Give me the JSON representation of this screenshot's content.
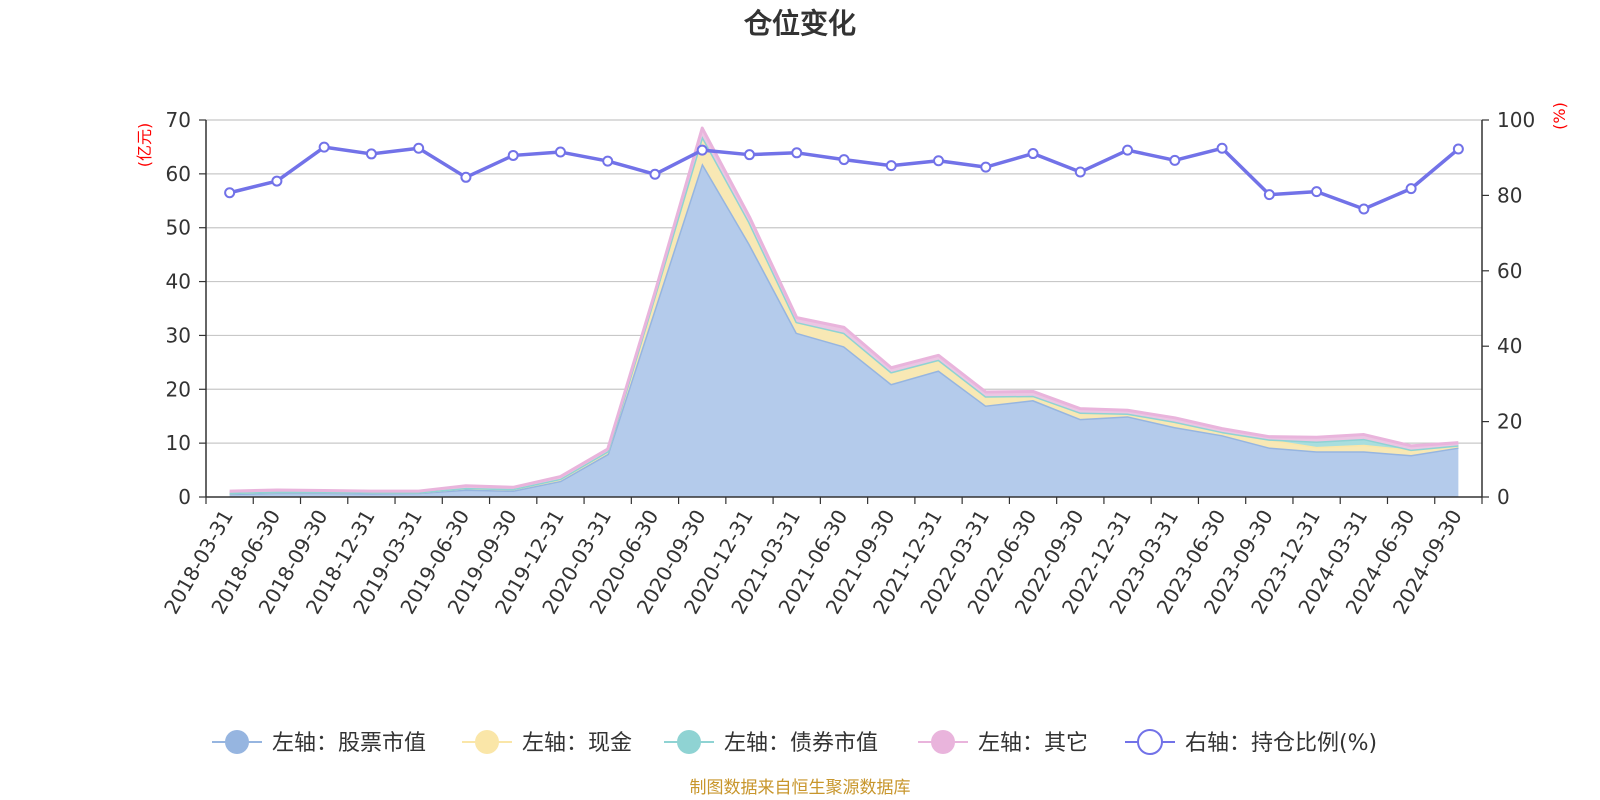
{
  "title": "仓位变化",
  "source": "制图数据来自恒生聚源数据库",
  "left_axis_unit": "(亿元)",
  "right_axis_unit": "(%)",
  "legend": [
    {
      "label": "左轴：股票市值",
      "color": "#96b5e0"
    },
    {
      "label": "左轴：现金",
      "color": "#fae6a8"
    },
    {
      "label": "左轴：债券市值",
      "color": "#8fd3d3"
    },
    {
      "label": "左轴：其它",
      "color": "#e9b4dc"
    },
    {
      "label": "右轴：持仓比例(%)",
      "color": "#7272e8"
    }
  ],
  "chart_data": {
    "type": "area",
    "title": "仓位变化",
    "categories": [
      "2018-03-31",
      "2018-06-30",
      "2018-09-30",
      "2018-12-31",
      "2019-03-31",
      "2019-06-30",
      "2019-09-30",
      "2019-12-31",
      "2020-03-31",
      "2020-06-30",
      "2020-09-30",
      "2020-12-31",
      "2021-03-31",
      "2021-06-30",
      "2021-09-30",
      "2021-12-31",
      "2022-03-31",
      "2022-06-30",
      "2022-09-30",
      "2022-12-31",
      "2023-03-31",
      "2023-06-30",
      "2023-09-30",
      "2023-12-31",
      "2024-03-31",
      "2024-06-30",
      "2024-09-30"
    ],
    "left_ylim": [
      0,
      70
    ],
    "left_ticks": [
      0,
      10,
      20,
      30,
      40,
      50,
      60,
      70
    ],
    "right_ylim": [
      0,
      100
    ],
    "right_ticks": [
      0,
      20,
      40,
      60,
      80,
      100
    ],
    "series": [
      {
        "name": "左轴：股票市值",
        "axis": "left",
        "type": "stacked-area",
        "values": [
          0.6,
          0.8,
          0.8,
          0.7,
          0.8,
          1.4,
          1.2,
          3.0,
          8.0,
          35.0,
          62.0,
          47.0,
          30.5,
          28.0,
          21.0,
          23.5,
          17.0,
          18.0,
          14.5,
          15.0,
          13.0,
          11.5,
          9.2,
          8.5,
          8.5,
          7.8,
          9.2
        ]
      },
      {
        "name": "左轴：现金",
        "axis": "left",
        "type": "stacked-area",
        "values": [
          0.2,
          0.2,
          0.2,
          0.2,
          0.1,
          0.3,
          0.3,
          0.4,
          0.5,
          2.5,
          5.0,
          4.0,
          2.0,
          2.5,
          2.2,
          2.0,
          1.7,
          0.8,
          1.2,
          0.5,
          1.0,
          0.6,
          1.5,
          0.8,
          1.2,
          1.0,
          0.4
        ]
      },
      {
        "name": "左轴：债券市值",
        "axis": "left",
        "type": "stacked-area",
        "values": [
          0,
          0,
          0,
          0,
          0,
          0,
          0,
          0,
          0,
          0,
          0,
          0,
          0,
          0,
          0,
          0,
          0,
          0,
          0,
          0,
          0,
          0,
          0,
          1.0,
          1.1,
          0,
          0
        ]
      },
      {
        "name": "左轴：其它",
        "axis": "left",
        "type": "stacked-area",
        "values": [
          0.3,
          0.3,
          0.2,
          0.2,
          0.2,
          0.4,
          0.3,
          0.4,
          0.4,
          0.5,
          1.5,
          1.0,
          0.8,
          1.0,
          0.8,
          0.8,
          0.8,
          0.8,
          0.7,
          0.6,
          0.7,
          0.6,
          0.5,
          0.8,
          0.8,
          0.7,
          0.5
        ]
      },
      {
        "name": "右轴：持仓比例(%)",
        "axis": "right",
        "type": "line",
        "values": [
          80.7,
          83.8,
          92.8,
          91.0,
          92.5,
          84.8,
          90.6,
          91.5,
          89.1,
          85.6,
          92.0,
          90.8,
          91.3,
          89.5,
          87.9,
          89.2,
          87.5,
          91.1,
          86.2,
          92.0,
          89.3,
          92.5,
          80.2,
          81.0,
          76.4,
          81.8,
          92.3
        ]
      }
    ]
  }
}
